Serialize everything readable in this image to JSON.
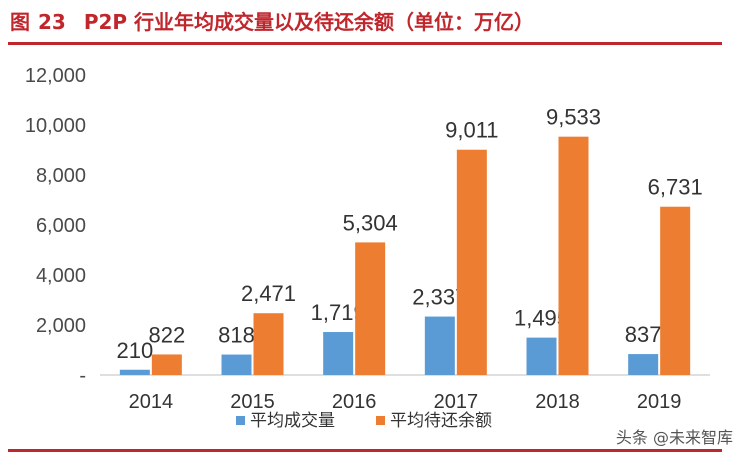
{
  "header": {
    "fig_label": "图",
    "fig_number": "23",
    "title_text": "P2P 行业年均成交量以及待还余额（单位：万亿）"
  },
  "watermark": "头条 @未来智库",
  "colors": {
    "accent": "#c0272d",
    "series1": "#5b9bd5",
    "series2": "#ed7d31"
  },
  "chart_data": {
    "type": "bar",
    "title": "P2P 行业年均成交量以及待还余额（单位：万亿）",
    "categories": [
      "2014",
      "2015",
      "2016",
      "2017",
      "2018",
      "2019"
    ],
    "series": [
      {
        "name": "平均成交量",
        "values": [
          210,
          818,
          1719,
          2337,
          1495,
          837
        ]
      },
      {
        "name": "平均待还余额",
        "values": [
          822,
          2471,
          5304,
          9011,
          9533,
          6731
        ]
      }
    ],
    "data_labels": [
      [
        "210",
        "818",
        "1,719",
        "2,337",
        "1,495",
        "837"
      ],
      [
        "822",
        "2,471",
        "5,304",
        "9,011",
        "9,533",
        "6,731"
      ]
    ],
    "ylim": [
      0,
      12000
    ],
    "yticks": [
      "-",
      "2,000",
      "4,000",
      "6,000",
      "8,000",
      "10,000",
      "12,000"
    ],
    "grid": false,
    "legend_position": "bottom"
  }
}
